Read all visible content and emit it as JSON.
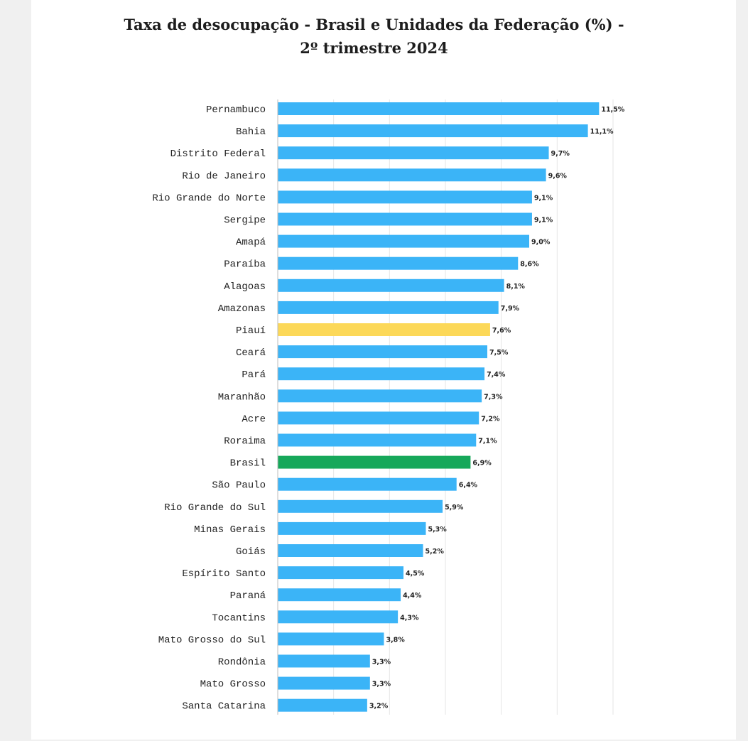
{
  "chart_data": {
    "type": "bar",
    "orientation": "horizontal",
    "title": "Taxa de desocupação - Brasil e Unidades da Federação (%) -",
    "subtitle": "2º trimestre 2024",
    "xlabel": "",
    "ylabel": "",
    "xlim": [
      0,
      12
    ],
    "x_gridlines": [
      0,
      2,
      4,
      6,
      8,
      10,
      12
    ],
    "grid": true,
    "legend": "none",
    "value_suffix": "%",
    "decimal_separator": ",",
    "colors": {
      "default": "#3bb4f7",
      "highlight_piaui": "#fcd858",
      "highlight_brasil": "#16a85a",
      "grid": "#e6e6e6",
      "axis": "#bdbdbd"
    },
    "categories": [
      "Pernambuco",
      "Bahia",
      "Distrito Federal",
      "Rio de Janeiro",
      "Rio Grande do Norte",
      "Sergipe",
      "Amapá",
      "Paraíba",
      "Alagoas",
      "Amazonas",
      "Piauí",
      "Ceará",
      "Pará",
      "Maranhão",
      "Acre",
      "Roraima",
      "Brasil",
      "São Paulo",
      "Rio Grande do Sul",
      "Minas Gerais",
      "Goiás",
      "Espírito Santo",
      "Paraná",
      "Tocantins",
      "Mato Grosso do Sul",
      "Rondônia",
      "Mato Grosso",
      "Santa Catarina"
    ],
    "values": [
      11.5,
      11.1,
      9.7,
      9.6,
      9.1,
      9.1,
      9.0,
      8.6,
      8.1,
      7.9,
      7.6,
      7.5,
      7.4,
      7.3,
      7.2,
      7.1,
      6.9,
      6.4,
      5.9,
      5.3,
      5.2,
      4.5,
      4.4,
      4.3,
      3.8,
      3.3,
      3.3,
      3.2
    ],
    "value_labels": [
      "11,5%",
      "11,1%",
      "9,7%",
      "9,6%",
      "9,1%",
      "9,1%",
      "9,0%",
      "8,6%",
      "8,1%",
      "7,9%",
      "7,6%",
      "7,5%",
      "7,4%",
      "7,3%",
      "7,2%",
      "7,1%",
      "6,9%",
      "6,4%",
      "5,9%",
      "5,3%",
      "5,2%",
      "4,5%",
      "4,4%",
      "4,3%",
      "3,8%",
      "3,3%",
      "3,3%",
      "3,2%"
    ],
    "highlights": {
      "Piauí": "highlight_piaui",
      "Brasil": "highlight_brasil"
    }
  }
}
